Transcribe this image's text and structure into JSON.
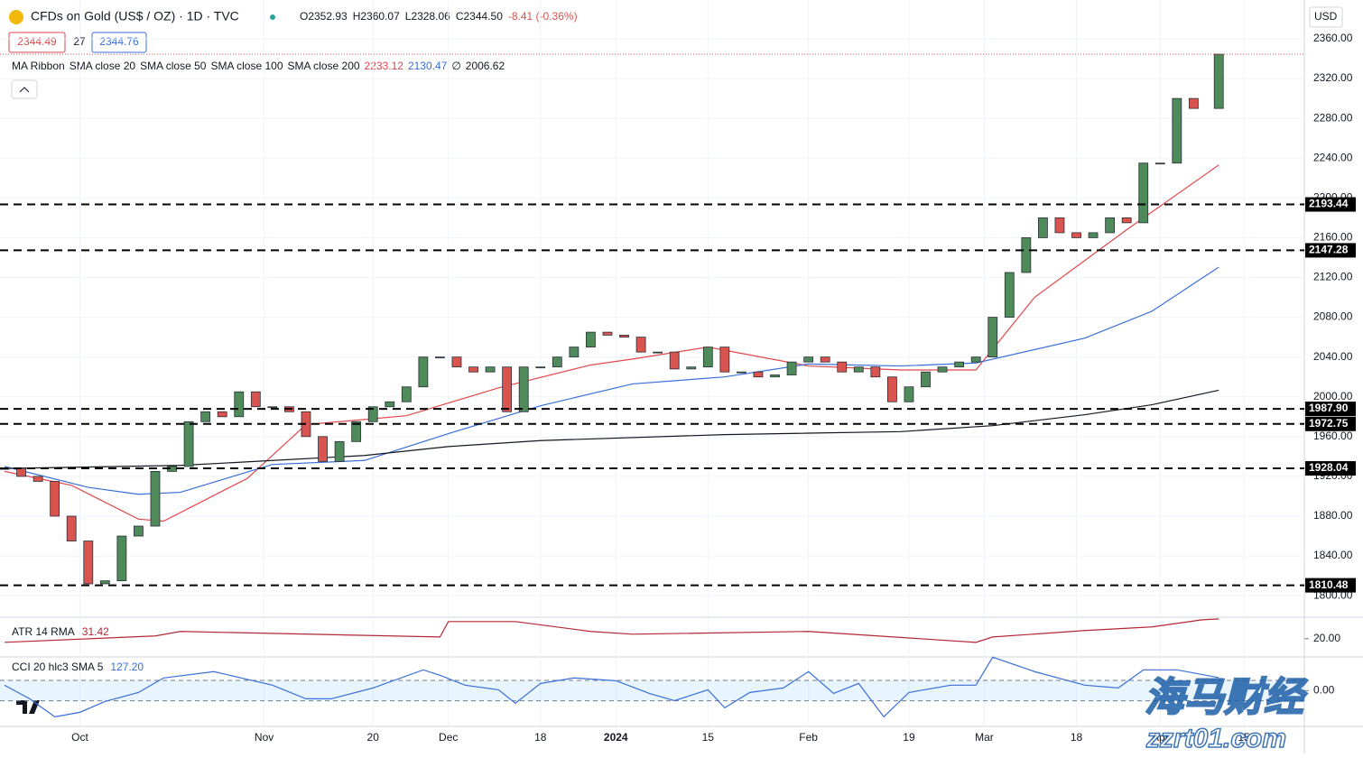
{
  "header": {
    "title": "CFDs on Gold (US$ / OZ) · 1D · TVC",
    "ohlc": [
      "O2352.93",
      "H2360.07",
      "L2328.06",
      "C2344.50",
      "-8.41 (-0.36%)"
    ],
    "bid": "2344.49",
    "spread": "27",
    "ask": "2344.76",
    "currency": "USD"
  },
  "watermark": [
    "海马财经",
    "zzrt01.com"
  ],
  "chart_data": [
    {
      "type": "candlestick",
      "up_color": "#4f8a5b",
      "down_color": "#d9534f",
      "x": [
        0,
        2,
        4,
        6,
        8,
        10,
        12,
        14,
        16,
        18,
        20,
        22,
        24,
        26,
        28,
        30,
        32,
        34,
        36,
        38,
        40,
        42,
        44,
        46,
        48,
        50,
        52,
        54,
        56,
        58,
        60,
        62,
        64,
        66,
        68,
        70,
        72,
        74,
        76,
        78,
        80,
        82,
        84,
        86,
        88,
        90,
        92,
        94,
        96,
        98,
        100,
        102,
        104,
        106,
        108,
        110,
        112,
        114,
        116,
        118,
        120,
        122,
        124,
        126,
        128,
        130,
        132,
        134,
        136,
        138,
        140,
        142,
        145
      ],
      "values": [
        1928,
        1920,
        1915,
        1880,
        1855,
        1812,
        1815,
        1860,
        1870,
        1925,
        1930,
        1975,
        1985,
        1980,
        2005,
        1990,
        1990,
        1985,
        1960,
        1935,
        1955,
        1975,
        1990,
        1995,
        2010,
        2040,
        2040,
        2030,
        2025,
        2030,
        1985,
        2030,
        2030,
        2040,
        2050,
        2065,
        2062,
        2060,
        2045,
        2045,
        2028,
        2030,
        2050,
        2025,
        2025,
        2020,
        2022,
        2035,
        2040,
        2035,
        2025,
        2030,
        2020,
        1995,
        2010,
        2025,
        2030,
        2035,
        2040,
        2080,
        2125,
        2160,
        2180,
        2165,
        2160,
        2165,
        2180,
        2175,
        2235,
        2235,
        2300,
        2290,
        2344.5
      ],
      "xlim": [
        0,
        155
      ],
      "xticks": [
        {
          "value": 9,
          "label": "Oct"
        },
        {
          "value": 31,
          "label": "Nov"
        },
        {
          "value": 44,
          "label": "20"
        },
        {
          "value": 53,
          "label": "Dec"
        },
        {
          "value": 64,
          "label": "18"
        },
        {
          "value": 73,
          "label": "2024"
        },
        {
          "value": 84,
          "label": "15"
        },
        {
          "value": 96,
          "label": "Feb"
        },
        {
          "value": 108,
          "label": "19"
        },
        {
          "value": 117,
          "label": "Mar"
        },
        {
          "value": 128,
          "label": "18"
        },
        {
          "value": 138,
          "label": "Apr"
        },
        {
          "value": 148,
          "label": "15"
        }
      ],
      "ylim": [
        1782,
        2399
      ],
      "yticks": [
        {
          "value": 1800,
          "label": "1800.00"
        },
        {
          "value": 1840,
          "label": "1840.00"
        },
        {
          "value": 1880,
          "label": "1880.00"
        },
        {
          "value": 1920,
          "label": "1920.00"
        },
        {
          "value": 1960,
          "label": "1960.00"
        },
        {
          "value": 2000,
          "label": "2000.00"
        },
        {
          "value": 2040,
          "label": "2040.00"
        },
        {
          "value": 2080,
          "label": "2080.00"
        },
        {
          "value": 2120,
          "label": "2120.00"
        },
        {
          "value": 2160,
          "label": "2160.00"
        },
        {
          "value": 2200,
          "label": "2200.00"
        },
        {
          "value": 2240,
          "label": "2240.00"
        },
        {
          "value": 2280,
          "label": "2280.00"
        },
        {
          "value": 2320,
          "label": "2320.00"
        },
        {
          "value": 2360,
          "label": "2360.00"
        }
      ],
      "levels": [
        2193.44,
        2147.28,
        {
          "value": 1987.9,
          "label": "1987.90"
        },
        1972.75,
        1928.04,
        1810.48
      ],
      "ma_title": "MA Ribbon",
      "series": [
        {
          "name": "SMA close 20",
          "color": "#e0474c",
          "value_label": "2233.12",
          "x": [
            0,
            8,
            16,
            19,
            29,
            36,
            48,
            59,
            70,
            75,
            84,
            96,
            107,
            116,
            123,
            134,
            145
          ],
          "values": [
            1925,
            1911,
            1877,
            1875,
            1918,
            1972,
            1981,
            2009,
            2032,
            2038,
            2050,
            2031,
            2027,
            2027,
            2100,
            2168,
            2233.12
          ]
        },
        {
          "name": "SMA close 50",
          "color": "#3a6fd8",
          "value_label": "2130.47",
          "x": [
            0,
            10,
            16,
            21,
            32,
            43,
            53,
            64,
            75,
            86,
            96,
            107,
            116,
            129,
            137,
            145
          ],
          "values": [
            1930,
            1909,
            1902,
            1904,
            1932,
            1936,
            1963,
            1991,
            2013,
            2020,
            2033,
            2031,
            2034,
            2059,
            2086,
            2130.47
          ]
        },
        {
          "name": "SMA close 100",
          "color": "#888888",
          "value_label": "∅",
          "x": [],
          "values": []
        },
        {
          "name": "SMA close 200",
          "color": "#131722",
          "value_label": "2006.62",
          "x": [
            0,
            21,
            43,
            53,
            64,
            86,
            107,
            118,
            129,
            137,
            145
          ],
          "values": [
            1928,
            1931,
            1941,
            1950,
            1956,
            1962,
            1965,
            1971,
            1982,
            1992,
            2006.62
          ]
        }
      ]
    },
    {
      "type": "line",
      "title": "ATR 14 RMA",
      "value_label": "31.42",
      "color": "#b22833",
      "ylim": [
        10,
        35
      ],
      "yticks": [
        {
          "value": 20,
          "label": "20.00"
        }
      ],
      "x": [
        0,
        18,
        21,
        52,
        53,
        61,
        70,
        75,
        96,
        116,
        118,
        129,
        137,
        143,
        145
      ],
      "values": [
        17.9,
        21.6,
        24.2,
        21,
        29.9,
        29.9,
        24.2,
        22.6,
        24.2,
        17.9,
        21,
        24.7,
        26.8,
        30.9,
        31.42
      ]
    },
    {
      "type": "line",
      "title": "CCI 20 hlc3 SMA 5",
      "value_label": "127.20",
      "color": "#3a6fd8",
      "ylim": [
        -350,
        400
      ],
      "bands": [
        -100,
        100
      ],
      "yticks": [
        {
          "value": 0,
          "label": "0.00"
        }
      ],
      "x": [
        0,
        3,
        6,
        9,
        12,
        16,
        19,
        25,
        32,
        36,
        39,
        44,
        50,
        52,
        55,
        59,
        61,
        64,
        68,
        73,
        77,
        80,
        84,
        86,
        89,
        93,
        96,
        99,
        102,
        105,
        108,
        113,
        116,
        118,
        123,
        129,
        133,
        136,
        140,
        145
      ],
      "values": [
        53,
        -80,
        -256,
        -212,
        -106,
        -18,
        124,
        186,
        53,
        -80,
        -80,
        26,
        203,
        150,
        53,
        8,
        -124,
        70,
        124,
        97,
        -27,
        -98,
        8,
        -168,
        -18,
        26,
        186,
        -27,
        70,
        -256,
        -18,
        53,
        53,
        327,
        186,
        53,
        26,
        203,
        203,
        127.2
      ]
    }
  ]
}
